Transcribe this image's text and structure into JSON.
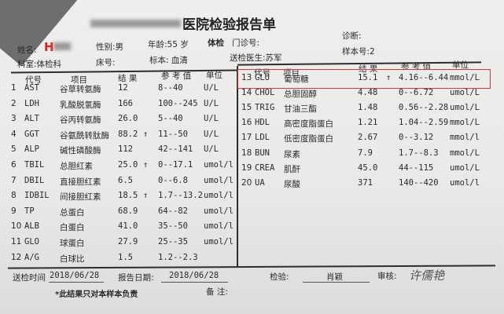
{
  "header": {
    "title": "医院检验报告单",
    "name_label": "姓名:",
    "gender": "性别:男",
    "age": "年龄:55 岁",
    "exam_type": "体检",
    "outpatient_no": "门诊号:",
    "diagnosis": "诊断:",
    "department": "科室:体检科",
    "bed_no": "床号:",
    "specimen": "标本: 血清",
    "doctor": "送检医生:苏军",
    "sample_no": "样本号:2"
  },
  "columns": {
    "code": "代号",
    "item": "项目",
    "result": "结 果",
    "reference": "参 考 值",
    "unit": "单位"
  },
  "left_rows": [
    {
      "no": "1",
      "code": "AST",
      "item": "谷草转氨酶",
      "result": "12",
      "flag": "",
      "ref": "8--40",
      "unit": "U/L"
    },
    {
      "no": "2",
      "code": "LDH",
      "item": "乳酸脱氢酶",
      "result": "166",
      "flag": "",
      "ref": "100--245",
      "unit": "U/L"
    },
    {
      "no": "3",
      "code": "ALT",
      "item": "谷丙转氨酶",
      "result": "26.0",
      "flag": "",
      "ref": "5--40",
      "unit": "U/L"
    },
    {
      "no": "4",
      "code": "GGT",
      "item": "谷氨酰转肽酶",
      "result": "88.2",
      "flag": "↑",
      "ref": "11--50",
      "unit": "U/L"
    },
    {
      "no": "5",
      "code": "ALP",
      "item": "碱性磷酸酶",
      "result": "112",
      "flag": "",
      "ref": "42--141",
      "unit": "U/L"
    },
    {
      "no": "6",
      "code": "TBIL",
      "item": "总胆红素",
      "result": "25.0",
      "flag": "↑",
      "ref": "0--17.1",
      "unit": "umol/l"
    },
    {
      "no": "7",
      "code": "DBIL",
      "item": "直接胆红素",
      "result": "6.5",
      "flag": "",
      "ref": "0--6.8",
      "unit": "umol/l"
    },
    {
      "no": "8",
      "code": "IDBIL",
      "item": "间接胆红素",
      "result": "18.5",
      "flag": "↑",
      "ref": "1.7--13.2",
      "unit": "umol/l"
    },
    {
      "no": "9",
      "code": "TP",
      "item": "总蛋白",
      "result": "68.9",
      "flag": "",
      "ref": "64--82",
      "unit": "umol/l"
    },
    {
      "no": "10",
      "code": "ALB",
      "item": "白蛋白",
      "result": "41.0",
      "flag": "",
      "ref": "35--50",
      "unit": "umol/l"
    },
    {
      "no": "11",
      "code": "GLO",
      "item": "球蛋白",
      "result": "27.9",
      "flag": "",
      "ref": "25--35",
      "unit": "umol/l"
    },
    {
      "no": "12",
      "code": "A/G",
      "item": "白球比",
      "result": "1.5",
      "flag": "",
      "ref": "1.2--2.3",
      "unit": ""
    }
  ],
  "right_rows": [
    {
      "no": "13",
      "code": "GLU",
      "item": "葡萄糖",
      "result": "15.1",
      "flag": "↑",
      "ref": "4.16--6.44",
      "unit": "mmol/L"
    },
    {
      "no": "14",
      "code": "CHOL",
      "item": "总胆固醇",
      "result": "4.48",
      "flag": "",
      "ref": "0--6.72",
      "unit": "umol/L"
    },
    {
      "no": "15",
      "code": "TRIG",
      "item": "甘油三酯",
      "result": "1.48",
      "flag": "",
      "ref": "0.56--2.28",
      "unit": "umol/L"
    },
    {
      "no": "16",
      "code": "HDL",
      "item": "高密度脂蛋白",
      "result": "1.21",
      "flag": "",
      "ref": "1.04--2.59",
      "unit": "mmol/L"
    },
    {
      "no": "17",
      "code": "LDL",
      "item": "低密度脂蛋白",
      "result": "2.67",
      "flag": "",
      "ref": "0--3.12",
      "unit": "mmol/l"
    },
    {
      "no": "18",
      "code": "BUN",
      "item": "尿素",
      "result": "7.9",
      "flag": "",
      "ref": "1.7--8.3",
      "unit": "mmol/L"
    },
    {
      "no": "19",
      "code": "CREA",
      "item": "肌酐",
      "result": "45.0",
      "flag": "",
      "ref": "44--115",
      "unit": "umol/L"
    },
    {
      "no": "20",
      "code": "UA",
      "item": "尿酸",
      "result": "371",
      "flag": "",
      "ref": "140--420",
      "unit": "umol/l"
    }
  ],
  "footer": {
    "submit_time_label": "送检时间",
    "submit_time": "2018/06/28",
    "report_date_label": "报告日期:",
    "report_date": "2018/06/28",
    "tester_label": "检验:",
    "tester": "肖颖",
    "reviewer_label": "审核:",
    "reviewer_signature": "许儒艳",
    "disclaimer": "*此结果只对本样本负责",
    "remarks_label": "备    注:"
  },
  "colors": {
    "highlight_box": "#d33a3a",
    "logo_red": "#e02020"
  }
}
